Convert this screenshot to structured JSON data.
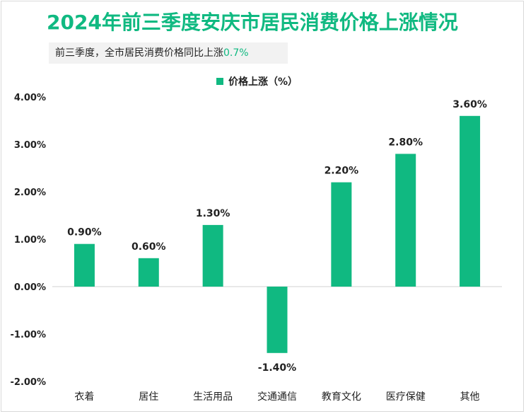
{
  "header": {
    "title": "2024年前三季度安庆市居民消费价格上涨情况",
    "subtitle_prefix": "前三季度，全市居民消费价格同比上涨",
    "subtitle_value": "0.7%"
  },
  "colors": {
    "bar": "#10b981",
    "title": "#10b981",
    "axis": "#d0d0d0"
  },
  "chart_data": {
    "type": "bar",
    "title": "2024年前三季度安庆市居民消费价格上涨情况",
    "legend": {
      "entries": [
        "价格上涨（%）"
      ],
      "position": "top"
    },
    "categories": [
      "衣着",
      "居住",
      "生活用品",
      "交通通信",
      "教育文化",
      "医疗保健",
      "其他"
    ],
    "series": [
      {
        "name": "价格上涨（%）",
        "values": [
          0.9,
          0.6,
          1.3,
          -1.4,
          2.2,
          2.8,
          3.6
        ]
      }
    ],
    "data_labels": [
      "0.90%",
      "0.60%",
      "1.30%",
      "-1.40%",
      "2.20%",
      "2.80%",
      "3.60%"
    ],
    "y_ticks": [
      4,
      3,
      2,
      1,
      0,
      -1,
      -2
    ],
    "y_tick_labels": [
      "4.00%",
      "3.00%",
      "2.00%",
      "1.00%",
      "0.00%",
      "-1.00%",
      "-2.00%"
    ],
    "ylim": [
      -2,
      4
    ],
    "grid": false
  }
}
